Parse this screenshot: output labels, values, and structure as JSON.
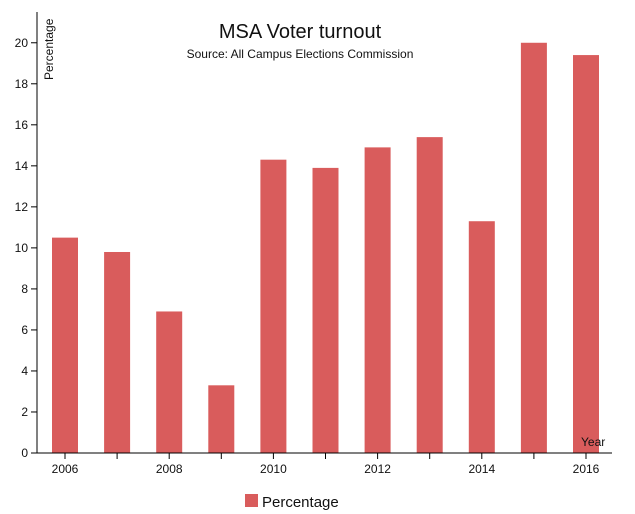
{
  "chart_data": {
    "type": "bar",
    "title": "MSA Voter turnout",
    "subtitle": "Source: All Campus Elections Commission",
    "xlabel": "Year",
    "ylabel": "Percentage",
    "x": [
      2006,
      2007,
      2008,
      2009,
      2010,
      2011,
      2012,
      2013,
      2014,
      2015,
      2016
    ],
    "series": [
      {
        "name": "Percentage",
        "values": [
          10.5,
          9.8,
          6.9,
          3.3,
          14.3,
          13.9,
          14.9,
          15.4,
          11.3,
          20.0,
          19.4
        ],
        "color": "#d95c5c"
      }
    ],
    "x_tick_labels": [
      "2006",
      "2008",
      "2010",
      "2012",
      "2014",
      "2016"
    ],
    "y_tick_labels": [
      "0",
      "2",
      "4",
      "6",
      "8",
      "10",
      "12",
      "14",
      "16",
      "18",
      "20"
    ],
    "ylim": [
      0,
      21.5
    ],
    "grid": false,
    "legend_position": "bottom-left"
  }
}
